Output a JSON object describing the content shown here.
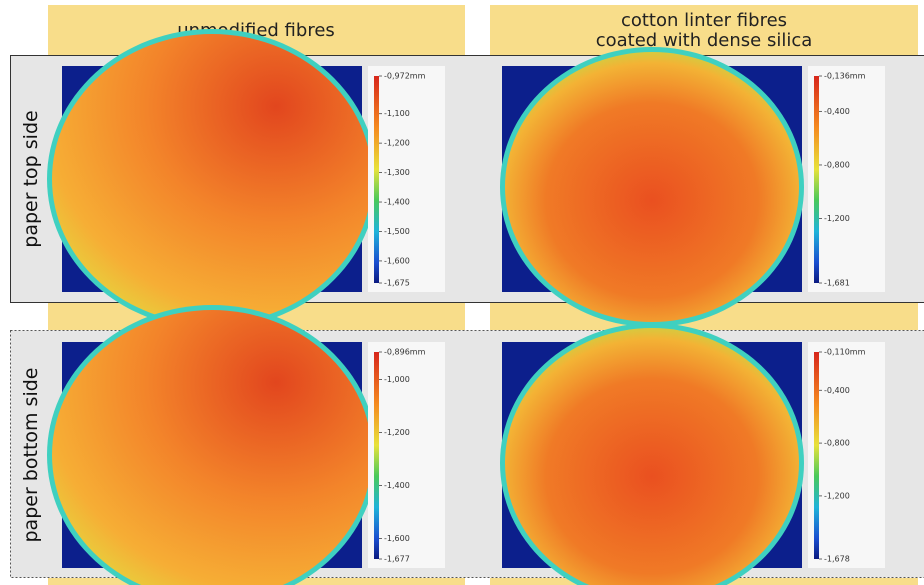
{
  "columns": [
    {
      "lines": [
        "unmodified fibres"
      ]
    },
    {
      "lines": [
        "cotton linter fibres",
        "coated with dense silica"
      ]
    }
  ],
  "rows": [
    "paper top side",
    "paper bottom side"
  ],
  "panels": [
    {
      "zlim": [
        -1.675,
        -0.972
      ],
      "ticks": [
        {
          "value": -0.972,
          "label": "-0,972mm"
        },
        {
          "value": -1.1,
          "label": "-1,100"
        },
        {
          "value": -1.2,
          "label": "-1,200"
        },
        {
          "value": -1.3,
          "label": "-1,300"
        },
        {
          "value": -1.4,
          "label": "-1,400"
        },
        {
          "value": -1.5,
          "label": "-1,500"
        },
        {
          "value": -1.6,
          "label": "-1,600"
        },
        {
          "value": -1.675,
          "label": "-1,675"
        }
      ]
    },
    {
      "zlim": [
        -1.681,
        -0.136
      ],
      "ticks": [
        {
          "value": -0.136,
          "label": "-0,136mm"
        },
        {
          "value": -0.4,
          "label": "-0,400"
        },
        {
          "value": -0.8,
          "label": "-0,800"
        },
        {
          "value": -1.2,
          "label": "-1,200"
        },
        {
          "value": -1.681,
          "label": "-1,681"
        }
      ]
    },
    {
      "zlim": [
        -1.677,
        -0.896
      ],
      "ticks": [
        {
          "value": -0.896,
          "label": "-0,896mm"
        },
        {
          "value": -1.0,
          "label": "-1,000"
        },
        {
          "value": -1.2,
          "label": "-1,200"
        },
        {
          "value": -1.4,
          "label": "-1,400"
        },
        {
          "value": -1.6,
          "label": "-1,600"
        },
        {
          "value": -1.677,
          "label": "-1,677"
        }
      ]
    },
    {
      "zlim": [
        -1.678,
        -0.11
      ],
      "ticks": [
        {
          "value": -0.11,
          "label": "-0,110mm"
        },
        {
          "value": -0.4,
          "label": "-0,400"
        },
        {
          "value": -0.8,
          "label": "-0,800"
        },
        {
          "value": -1.2,
          "label": "-1,200"
        },
        {
          "value": -1.678,
          "label": "-1,678"
        }
      ]
    }
  ]
}
